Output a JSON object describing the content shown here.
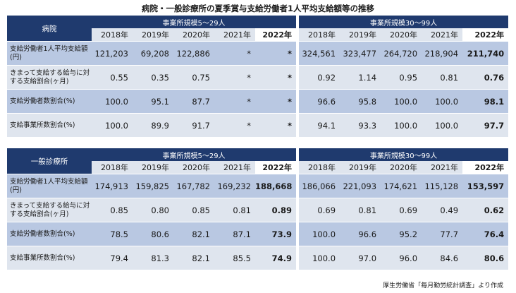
{
  "title": "病院・一般診療所の夏季賞与支給労働者1人平均支給額等の推移",
  "credit": "厚生労働省「毎月勤労統計調査」より作成",
  "groups": [
    "事業所規模5～29人",
    "事業所規模30～99人"
  ],
  "years": [
    "2018年",
    "2019年",
    "2020年",
    "2021年",
    "2022年"
  ],
  "tables": [
    {
      "section": "病院",
      "rows": [
        {
          "label": "支給労働者1人平均支給額(円)",
          "a": [
            "121,203",
            "69,208",
            "122,886",
            "*",
            "*"
          ],
          "b": [
            "324,561",
            "323,477",
            "264,720",
            "218,904",
            "211,740"
          ]
        },
        {
          "label": "きまって支給する給与に対する支給割合(ヶ月)",
          "a": [
            "0.55",
            "0.35",
            "0.75",
            "*",
            "*"
          ],
          "b": [
            "0.92",
            "1.14",
            "0.95",
            "0.81",
            "0.76"
          ]
        },
        {
          "label": "支給労働者数割合(%)",
          "a": [
            "100.0",
            "95.1",
            "87.7",
            "*",
            "*"
          ],
          "b": [
            "96.6",
            "95.8",
            "100.0",
            "100.0",
            "98.1"
          ]
        },
        {
          "label": "支給事業所数割合(%)",
          "a": [
            "100.0",
            "89.9",
            "91.7",
            "*",
            "*"
          ],
          "b": [
            "94.1",
            "93.3",
            "100.0",
            "100.0",
            "97.7"
          ]
        }
      ]
    },
    {
      "section": "一般診療所",
      "rows": [
        {
          "label": "支給労働者1人平均支給額(円)",
          "a": [
            "174,913",
            "159,825",
            "167,782",
            "169,232",
            "188,668"
          ],
          "b": [
            "186,066",
            "221,093",
            "174,621",
            "115,128",
            "153,597"
          ]
        },
        {
          "label": "きまって支給する給与に対する支給割合(ヶ月)",
          "a": [
            "0.85",
            "0.80",
            "0.85",
            "0.81",
            "0.89"
          ],
          "b": [
            "0.69",
            "0.81",
            "0.69",
            "0.49",
            "0.62"
          ]
        },
        {
          "label": "支給労働者数割合(%)",
          "a": [
            "78.5",
            "80.6",
            "82.1",
            "87.1",
            "73.9"
          ],
          "b": [
            "100.0",
            "96.6",
            "95.2",
            "77.7",
            "76.4"
          ]
        },
        {
          "label": "支給事業所数割合(%)",
          "a": [
            "79.4",
            "81.3",
            "82.1",
            "85.5",
            "74.9"
          ],
          "b": [
            "100.0",
            "97.0",
            "96.0",
            "84.6",
            "80.6"
          ]
        }
      ]
    }
  ]
}
